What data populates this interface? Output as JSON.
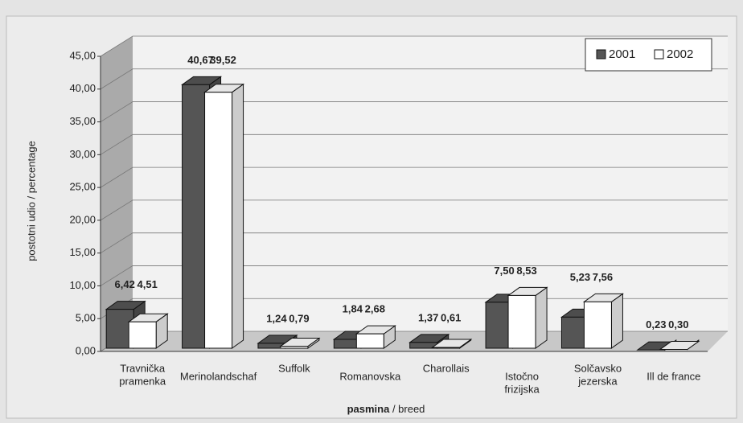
{
  "chart_data": {
    "type": "bar3d",
    "ylabel": "postotni udio / percentage",
    "xlabel_parts": [
      "pasmina",
      " / breed"
    ],
    "categories": [
      [
        "Travnička",
        "pramenka"
      ],
      [
        "Merinolandschaf"
      ],
      [
        "Suffolk"
      ],
      [
        "Romanovska"
      ],
      [
        "Charollais"
      ],
      [
        "Istočno",
        "frizijska"
      ],
      [
        "Solčavsko",
        "jezerska"
      ],
      [
        "Ill de france"
      ]
    ],
    "series": [
      {
        "name": "2001",
        "color": "#555555",
        "values": [
          6.42,
          40.67,
          1.24,
          1.84,
          1.37,
          7.5,
          5.23,
          0.23
        ],
        "value_labels": [
          "6,42",
          "40,67",
          "1,24",
          "1,84",
          "1,37",
          "7,50",
          "5,23",
          "0,23"
        ]
      },
      {
        "name": "2002",
        "color": "#ffffff",
        "values": [
          4.51,
          39.52,
          0.79,
          2.68,
          0.61,
          8.53,
          7.56,
          0.3
        ],
        "value_labels": [
          "4,51",
          "39,52",
          "0,79",
          "2,68",
          "0,61",
          "8,53",
          "7,56",
          "0,30"
        ]
      }
    ],
    "ylim": [
      0,
      45
    ],
    "yticks": [
      {
        "value": 0,
        "label": "0,00"
      },
      {
        "value": 5,
        "label": "5,00"
      },
      {
        "value": 10,
        "label": "10,00"
      },
      {
        "value": 15,
        "label": "15,00"
      },
      {
        "value": 20,
        "label": "20,00"
      },
      {
        "value": 25,
        "label": "25,00"
      },
      {
        "value": 30,
        "label": "30,00"
      },
      {
        "value": 35,
        "label": "35,00"
      },
      {
        "value": 40,
        "label": "40,00"
      },
      {
        "value": 45,
        "label": "45,00"
      }
    ],
    "grid": true,
    "legend": "top-right"
  }
}
